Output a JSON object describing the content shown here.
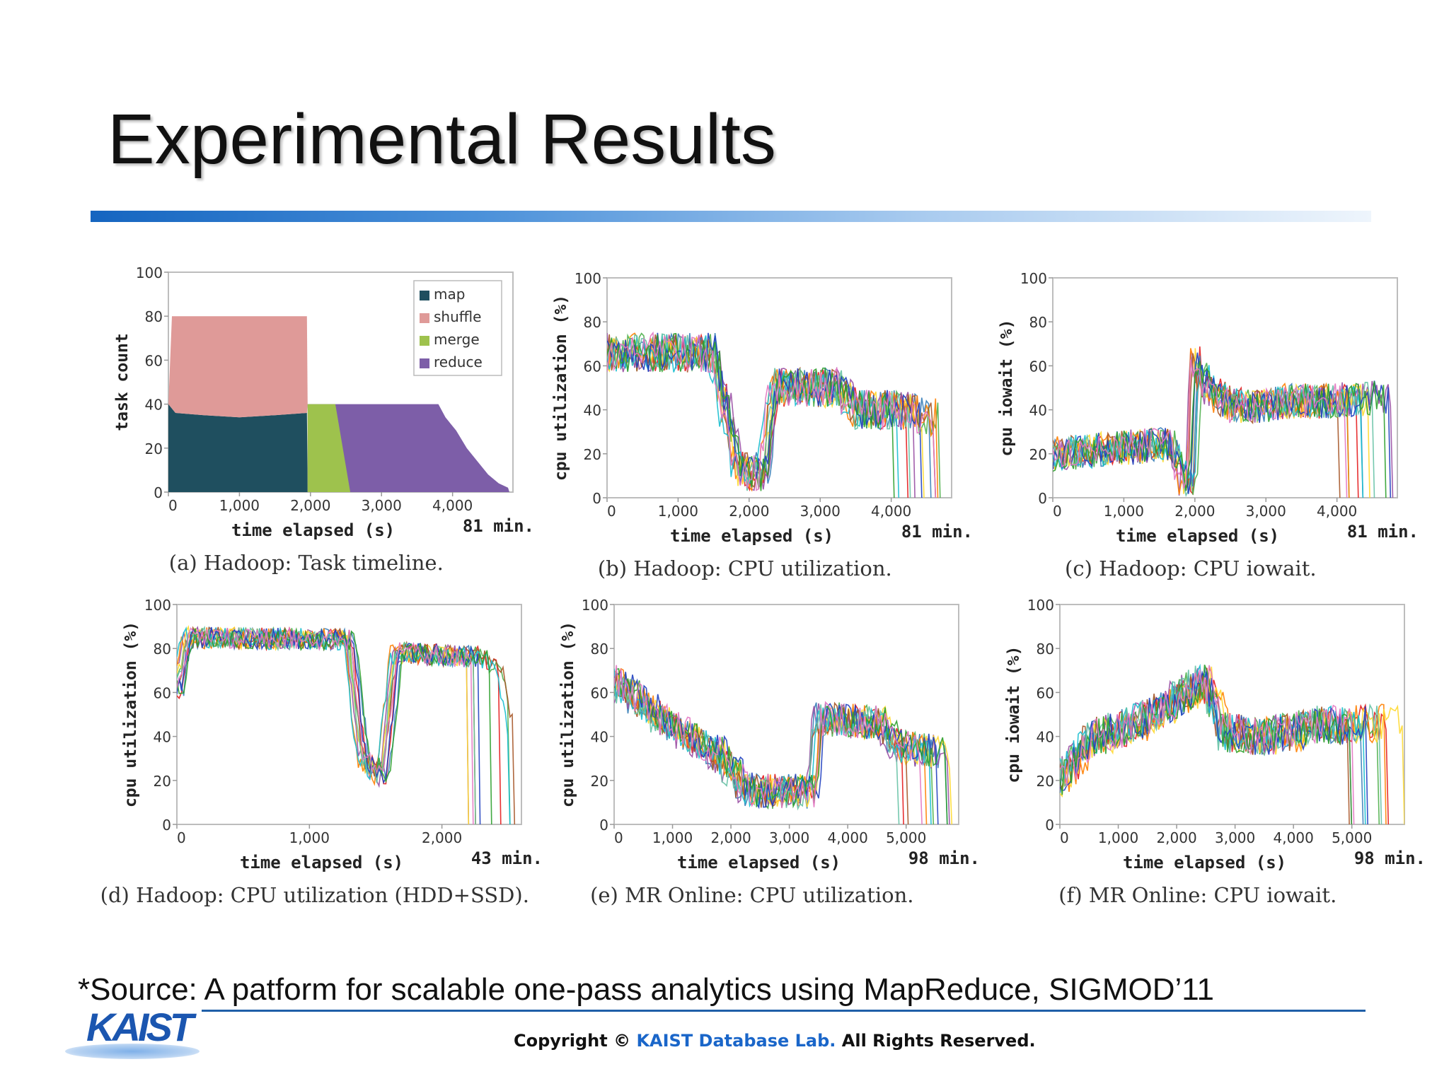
{
  "slide": {
    "title": "Experimental Results",
    "source": "*Source: A patform for scalable one-pass analytics using MapReduce, SIGMOD’11",
    "logo": "KAIST",
    "copyright_pre": "Copyright © ",
    "copyright_lab": "KAIST Database Lab.",
    "copyright_post": " All Rights Reserved."
  },
  "colors": {
    "map": "#1f4f5f",
    "shuffle": "#df9a98",
    "merge": "#9ec24d",
    "reduce": "#7d5ea8",
    "series_palette": [
      "#e41a1c",
      "#377eb8",
      "#4daf4a",
      "#984ea3",
      "#ff7f00",
      "#ffd92f",
      "#a65628",
      "#17becf",
      "#66c2a5",
      "#1f3fbf",
      "#2ca02c",
      "#e377c2"
    ]
  },
  "chart_data": [
    {
      "id": "a",
      "type": "area",
      "caption": "(a) Hadoop: Task timeline.",
      "xlabel": "time elapsed (s)",
      "ylabel": "task count",
      "duration_label": "81 min.",
      "xlim": [
        0,
        4850
      ],
      "ylim": [
        0,
        100
      ],
      "xticks": [
        0,
        1000,
        2000,
        3000,
        4000
      ],
      "xtick_labels": [
        "0",
        "1,000",
        "2,000",
        "3,000",
        "4,000"
      ],
      "yticks": [
        0,
        20,
        40,
        60,
        80,
        100
      ],
      "legend_position": "top-right",
      "series": [
        {
          "name": "map",
          "color_key": "map",
          "points": [
            [
              0,
              40
            ],
            [
              100,
              36
            ],
            [
              500,
              35
            ],
            [
              1000,
              34
            ],
            [
              1500,
              35
            ],
            [
              1950,
              36
            ],
            [
              1960,
              0
            ]
          ]
        },
        {
          "name": "shuffle",
          "color_key": "shuffle",
          "base": [
            [
              0,
              40
            ],
            [
              100,
              36
            ],
            [
              500,
              35
            ],
            [
              1000,
              34
            ],
            [
              1500,
              35
            ],
            [
              1950,
              36
            ],
            [
              1960,
              40
            ]
          ],
          "points": [
            [
              0,
              40
            ],
            [
              50,
              80
            ],
            [
              1950,
              80
            ],
            [
              1960,
              40
            ]
          ]
        },
        {
          "name": "merge",
          "color_key": "merge",
          "points": [
            [
              1960,
              40
            ],
            [
              2350,
              40
            ],
            [
              2560,
              0
            ]
          ]
        },
        {
          "name": "reduce",
          "color_key": "reduce",
          "points": [
            [
              2350,
              40
            ],
            [
              2560,
              0
            ],
            [
              1960,
              0
            ]
          ],
          "top": [
            [
              2350,
              40
            ],
            [
              3800,
              40
            ],
            [
              3900,
              34
            ],
            [
              4050,
              28
            ],
            [
              4200,
              20
            ],
            [
              4350,
              14
            ],
            [
              4500,
              8
            ],
            [
              4650,
              4
            ],
            [
              4780,
              2
            ],
            [
              4800,
              0
            ]
          ]
        }
      ]
    },
    {
      "id": "b",
      "type": "line",
      "caption": "(b) Hadoop: CPU utilization.",
      "xlabel": "time elapsed (s)",
      "ylabel": "cpu utilization (%)",
      "duration_label": "81 min.",
      "xlim": [
        0,
        4850
      ],
      "ylim": [
        0,
        100
      ],
      "xticks": [
        0,
        1000,
        2000,
        3000,
        4000
      ],
      "xtick_labels": [
        "0",
        "1,000",
        "2,000",
        "3,000",
        "4,000"
      ],
      "yticks": [
        0,
        20,
        40,
        60,
        80,
        100
      ],
      "series_count": 12,
      "profile": [
        [
          0,
          66
        ],
        [
          1500,
          66
        ],
        [
          1750,
          30
        ],
        [
          1850,
          12
        ],
        [
          2200,
          12
        ],
        [
          2350,
          50
        ],
        [
          3300,
          50
        ],
        [
          3500,
          40
        ],
        [
          4100,
          40
        ],
        [
          4300,
          38
        ],
        [
          4850,
          36
        ]
      ],
      "noise": 9,
      "seed": 11
    },
    {
      "id": "c",
      "type": "line",
      "caption": "(c) Hadoop: CPU iowait.",
      "xlabel": "time elapsed (s)",
      "ylabel": "cpu iowait (%)",
      "duration_label": "81 min.",
      "xlim": [
        0,
        4850
      ],
      "ylim": [
        0,
        100
      ],
      "xticks": [
        0,
        1000,
        2000,
        3000,
        4000
      ],
      "xtick_labels": [
        "0",
        "1,000",
        "2,000",
        "3,000",
        "4,000"
      ],
      "yticks": [
        0,
        20,
        40,
        60,
        80,
        100
      ],
      "series_count": 12,
      "profile": [
        [
          0,
          20
        ],
        [
          1500,
          24
        ],
        [
          1700,
          24
        ],
        [
          1850,
          8
        ],
        [
          1960,
          10
        ],
        [
          2000,
          62
        ],
        [
          2200,
          50
        ],
        [
          2500,
          42
        ],
        [
          3000,
          42
        ],
        [
          3300,
          44
        ],
        [
          4000,
          44
        ],
        [
          4300,
          45
        ],
        [
          4850,
          46
        ]
      ],
      "noise": 8,
      "seed": 23
    },
    {
      "id": "d",
      "type": "line",
      "caption": "(d) Hadoop: CPU utilization (HDD+SSD).",
      "xlabel": "time elapsed (s)",
      "ylabel": "cpu utilization (%)",
      "duration_label": "43 min.",
      "xlim": [
        0,
        2600
      ],
      "ylim": [
        0,
        100
      ],
      "xticks": [
        0,
        1000,
        2000
      ],
      "xtick_labels": [
        "0",
        "1,000",
        "2,000"
      ],
      "yticks": [
        0,
        20,
        40,
        60,
        80,
        100
      ],
      "series_count": 12,
      "profile": [
        [
          0,
          62
        ],
        [
          80,
          85
        ],
        [
          1300,
          84
        ],
        [
          1400,
          30
        ],
        [
          1550,
          22
        ],
        [
          1650,
          78
        ],
        [
          2300,
          76
        ],
        [
          2450,
          70
        ],
        [
          2600,
          20
        ]
      ],
      "noise": 5,
      "seed": 37
    },
    {
      "id": "e",
      "type": "line",
      "caption": "(e) MR Online: CPU utilization.",
      "xlabel": "time elapsed (s)",
      "ylabel": "cpu utilization (%)",
      "duration_label": "98 min.",
      "xlim": [
        0,
        5900
      ],
      "ylim": [
        0,
        100
      ],
      "xticks": [
        0,
        1000,
        2000,
        3000,
        4000,
        5000
      ],
      "xtick_labels": [
        "0",
        "1,000",
        "2,000",
        "3,000",
        "4,000",
        "5,000"
      ],
      "yticks": [
        0,
        20,
        40,
        60,
        80,
        100
      ],
      "series_count": 12,
      "profile": [
        [
          0,
          65
        ],
        [
          800,
          48
        ],
        [
          1800,
          32
        ],
        [
          2300,
          15
        ],
        [
          3400,
          15
        ],
        [
          3500,
          48
        ],
        [
          4600,
          46
        ],
        [
          4900,
          35
        ],
        [
          5900,
          32
        ]
      ],
      "noise": 8,
      "seed": 53
    },
    {
      "id": "f",
      "type": "line",
      "caption": "(f) MR Online: CPU iowait.",
      "xlabel": "time elapsed (s)",
      "ylabel": "cpu iowait (%)",
      "duration_label": "98 min.",
      "xlim": [
        0,
        5900
      ],
      "ylim": [
        0,
        100
      ],
      "xticks": [
        0,
        1000,
        2000,
        3000,
        4000,
        5000
      ],
      "xtick_labels": [
        "0",
        "1,000",
        "2,000",
        "3,000",
        "4,000",
        "5,000"
      ],
      "yticks": [
        0,
        20,
        40,
        60,
        80,
        100
      ],
      "series_count": 12,
      "profile": [
        [
          0,
          20
        ],
        [
          500,
          38
        ],
        [
          1500,
          48
        ],
        [
          2500,
          65
        ],
        [
          2600,
          60
        ],
        [
          2800,
          42
        ],
        [
          3600,
          40
        ],
        [
          4500,
          45
        ],
        [
          5900,
          46
        ]
      ],
      "noise": 9,
      "seed": 71
    }
  ]
}
